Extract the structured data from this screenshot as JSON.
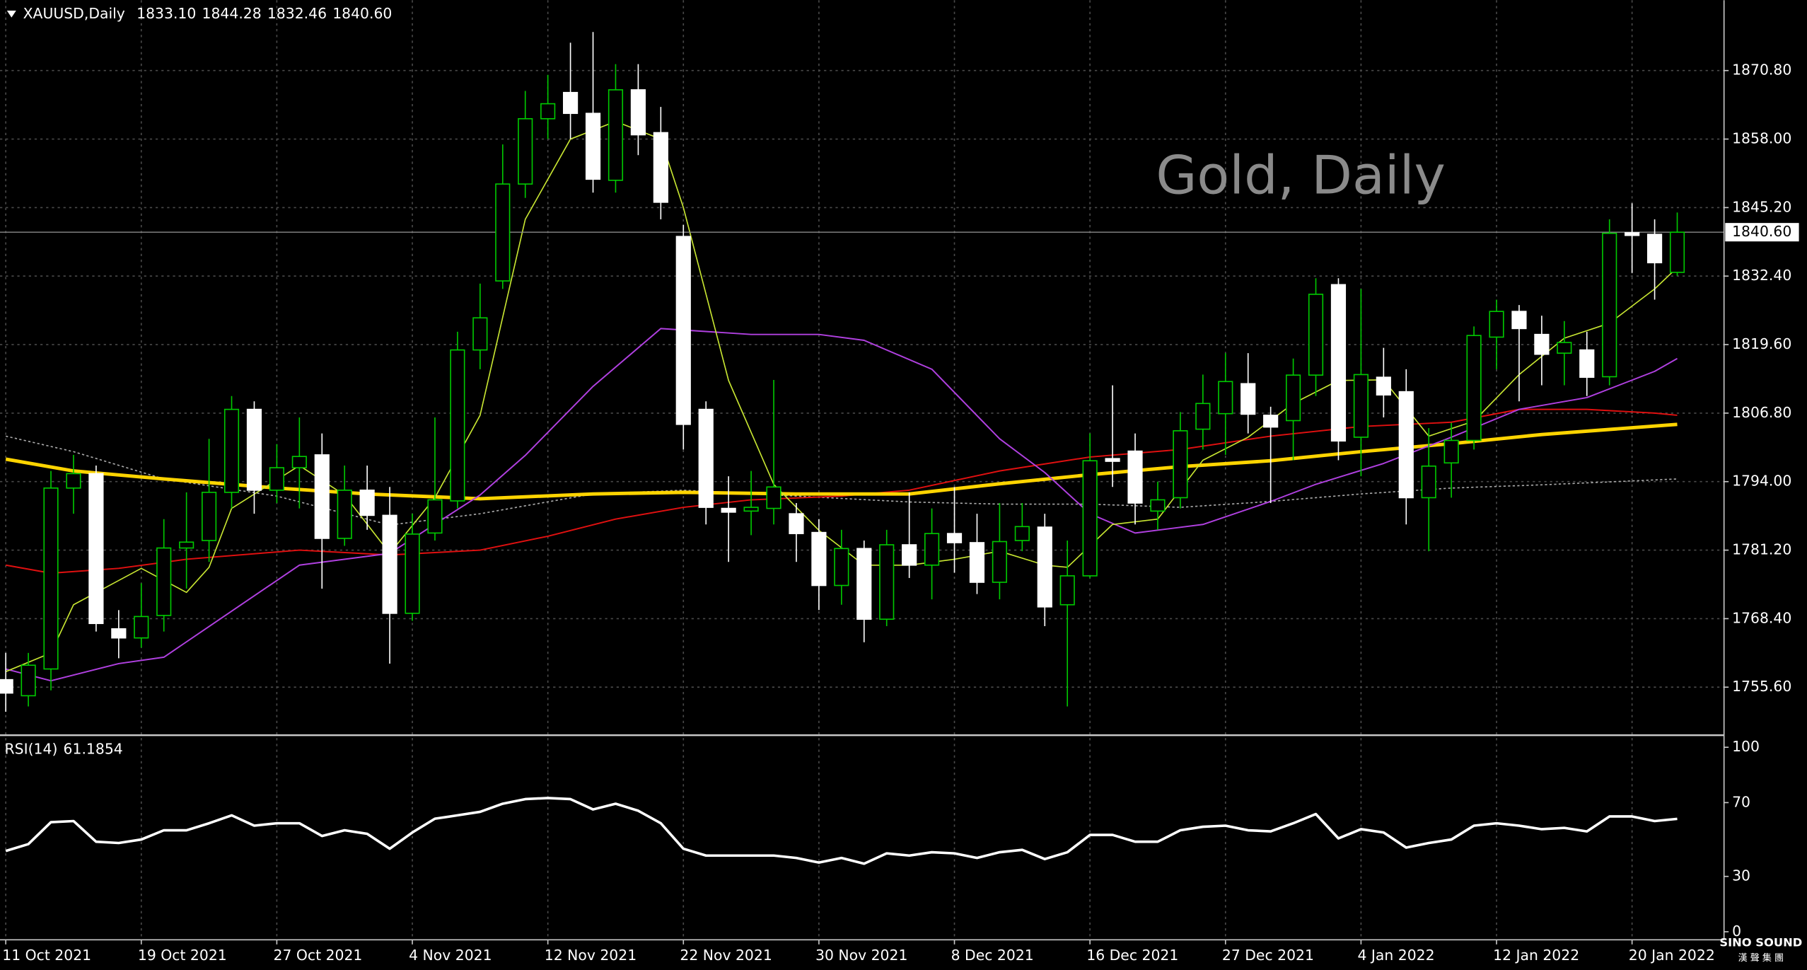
{
  "chart_data": {
    "type": "candlestick",
    "symbol": "XAUUSD,Daily",
    "ohlc_value_labels": [
      "1833.10",
      "1844.28",
      "1832.46",
      "1840.60"
    ],
    "watermark": "Gold, Daily",
    "logo": "SINO SOUND",
    "logo_sub": "漢 聲 集 團",
    "up_color": "#00c800",
    "down_color": "#ffffff",
    "grid": true,
    "categories": [
      "11 Oct 2021",
      null,
      null,
      null,
      null,
      null,
      "19 Oct 2021",
      null,
      null,
      null,
      null,
      null,
      "27 Oct 2021",
      null,
      null,
      null,
      null,
      null,
      "4 Nov 2021",
      null,
      null,
      null,
      null,
      null,
      "12 Nov 2021",
      null,
      null,
      null,
      null,
      null,
      "22 Nov 2021",
      null,
      null,
      null,
      null,
      null,
      "30 Nov 2021",
      null,
      null,
      null,
      null,
      null,
      "8 Dec 2021",
      null,
      null,
      null,
      null,
      null,
      "16 Dec 2021",
      null,
      null,
      null,
      null,
      null,
      "27 Dec 2021",
      null,
      null,
      null,
      null,
      null,
      "4 Jan 2022",
      null,
      null,
      null,
      null,
      null,
      "12 Jan 2022",
      null,
      null,
      null,
      null,
      null,
      "20 Jan 2022",
      null,
      null
    ],
    "open": [
      1757,
      1754,
      1759,
      1792.8,
      1795.5,
      1766.5,
      1764.8,
      1769,
      1781.6,
      1783,
      1792,
      1807.5,
      1792.4,
      1796.6,
      1799,
      1783.4,
      1792.4,
      1787.7,
      1769.4,
      1784.4,
      1790.4,
      1818.6,
      1831.5,
      1849.6,
      1861.8,
      1866.7,
      1862.8,
      1850.3,
      1867.2,
      1859.2,
      1839.8,
      1807.5,
      1789,
      1788.5,
      1789,
      1788,
      1784.5,
      1774.6,
      1781.5,
      1768.3,
      1782.2,
      1778.4,
      1784.3,
      1782.6,
      1775.2,
      1783,
      1785.5,
      1771,
      1776.4,
      1798.3,
      1799.7,
      1788.5,
      1791,
      1803.8,
      1806.7,
      1812.3,
      1806.4,
      1805.4,
      1813.9,
      1830.8,
      1802.3,
      1813.5,
      1810.8,
      1791,
      1797.5,
      1801.7,
      1821,
      1825.8,
      1821.5,
      1818,
      1818.6,
      1813.6,
      1840.5,
      1840.2,
      1833.1
    ],
    "high": [
      1762,
      1762,
      1796,
      1799,
      1797,
      1770,
      1775,
      1787,
      1792,
      1802,
      1810,
      1809,
      1801,
      1806,
      1803,
      1797,
      1797,
      1793,
      1788,
      1806,
      1822,
      1831,
      1857,
      1867,
      1870,
      1876,
      1878,
      1872,
      1872,
      1864,
      1842,
      1809,
      1795,
      1796,
      1813,
      1790,
      1787,
      1785,
      1783,
      1785,
      1792,
      1789,
      1793,
      1788,
      1790,
      1790,
      1788,
      1783,
      1803,
      1812,
      1803,
      1794,
      1807,
      1814,
      1818,
      1818,
      1808,
      1817,
      1832,
      1832,
      1830,
      1819,
      1815,
      1804,
      1805,
      1823,
      1828,
      1827,
      1825,
      1824,
      1822,
      1843,
      1846,
      1843,
      1844.28
    ],
    "low": [
      1751,
      1752,
      1755,
      1788,
      1766,
      1761,
      1763,
      1766,
      1774,
      1779,
      1789,
      1788,
      1790,
      1789,
      1774,
      1782,
      1785,
      1760,
      1768,
      1783,
      1789,
      1815,
      1830,
      1847,
      1858,
      1858,
      1848,
      1848,
      1855,
      1843,
      1800,
      1786,
      1779,
      1784,
      1786,
      1779,
      1770,
      1771,
      1764,
      1767,
      1776,
      1772,
      1777,
      1773,
      1772,
      1781,
      1767,
      1752,
      1776,
      1793,
      1786,
      1785,
      1789,
      1800,
      1799,
      1803,
      1790,
      1798,
      1810,
      1798,
      1795,
      1806,
      1786,
      1781,
      1791,
      1800,
      1815,
      1809,
      1812,
      1812,
      1810,
      1812,
      1833,
      1828,
      1832.46
    ],
    "close": [
      1754.5,
      1759.7,
      1792.8,
      1795.5,
      1767.5,
      1764.8,
      1768.8,
      1781.6,
      1782.7,
      1792,
      1807.5,
      1792.4,
      1796.6,
      1798.7,
      1783.4,
      1792.4,
      1787.7,
      1769.4,
      1784.2,
      1790.6,
      1818.6,
      1824.6,
      1849.6,
      1861.8,
      1864.6,
      1862.8,
      1850.5,
      1867.2,
      1858.8,
      1846.2,
      1804.7,
      1789.2,
      1788.3,
      1789.2,
      1793,
      1784.3,
      1774.6,
      1781.5,
      1768.3,
      1782.2,
      1778.4,
      1784.3,
      1782.6,
      1775.2,
      1782.8,
      1785.6,
      1770.6,
      1776.4,
      1797.9,
      1797.8,
      1790,
      1790.6,
      1803.5,
      1808.6,
      1812.7,
      1806.6,
      1804.2,
      1813.9,
      1829,
      1801.6,
      1814,
      1810.2,
      1791,
      1796.9,
      1801.7,
      1821.3,
      1825.8,
      1822.6,
      1817.8,
      1820,
      1813.5,
      1840.4,
      1840,
      1834.9,
      1840.6
    ],
    "series": [
      {
        "color": "#aaaaaa",
        "width": 1,
        "dashed": true,
        "x": [
          0,
          3,
          7,
          12,
          17,
          21,
          26,
          30,
          35,
          40,
          44,
          48,
          52,
          56,
          60,
          64,
          68,
          74
        ],
        "values": [
          1802.5,
          1799.6,
          1794.5,
          1791.3,
          1785.9,
          1788,
          1791.7,
          1792.4,
          1791.3,
          1790.2,
          1789.8,
          1789.8,
          1789.2,
          1790.3,
          1791.7,
          1792.8,
          1793.4,
          1794.5
        ]
      },
      {
        "color": "#e01010",
        "width": 1.2,
        "dashed": false,
        "x": [
          0,
          2,
          5,
          8,
          13,
          17,
          21,
          24,
          27,
          30,
          33,
          37,
          40,
          44,
          48,
          52,
          56,
          60,
          64,
          67,
          70,
          73,
          74
        ],
        "values": [
          1778.4,
          1776.9,
          1777.8,
          1779.5,
          1781.2,
          1780.3,
          1781.2,
          1783.8,
          1787,
          1789.2,
          1790.6,
          1791.3,
          1792.4,
          1796,
          1798.6,
          1800,
          1802.5,
          1804.3,
          1805.1,
          1807.5,
          1807.5,
          1806.8,
          1806.4
        ]
      },
      {
        "color": "#ffd400",
        "width": 3,
        "dashed": false,
        "x": [
          0,
          3,
          7,
          12,
          16,
          21,
          26,
          30,
          35,
          40,
          44,
          48,
          52,
          56,
          60,
          64,
          68,
          74
        ],
        "values": [
          1798.2,
          1796,
          1794.5,
          1792.8,
          1791.7,
          1790.8,
          1791.7,
          1792,
          1791.7,
          1791.7,
          1793.6,
          1795.3,
          1796.8,
          1797.9,
          1799.6,
          1801.1,
          1802.8,
          1804.7
        ]
      },
      {
        "color": "#b040e0",
        "width": 1.2,
        "dashed": false,
        "x": [
          0,
          2,
          5,
          7,
          10,
          13,
          17,
          21,
          23,
          26,
          29,
          33,
          36,
          38,
          41,
          44,
          46,
          48,
          50,
          53,
          56,
          58,
          61,
          64,
          67,
          70,
          73,
          74
        ],
        "values": [
          1759,
          1756.8,
          1760,
          1761.2,
          1769.8,
          1778.4,
          1780.6,
          1791.5,
          1798.9,
          1811.8,
          1822.6,
          1821.5,
          1821.5,
          1820.4,
          1815,
          1802,
          1795.7,
          1788,
          1784.4,
          1786,
          1790.3,
          1793.5,
          1797.4,
          1802.3,
          1807.5,
          1809.7,
          1814.6,
          1817
        ]
      },
      {
        "color": "#c8e632",
        "width": 1,
        "dashed": false,
        "x": [
          0,
          2,
          3,
          6,
          8,
          9,
          10,
          13,
          15,
          17,
          19,
          21,
          23,
          25,
          27,
          29,
          30,
          32,
          34,
          36,
          38,
          40,
          42,
          44,
          46,
          47,
          49,
          51,
          53,
          55,
          57,
          59,
          61,
          63,
          65,
          67,
          69,
          71,
          73,
          74
        ],
        "values": [
          1758.5,
          1762,
          1771,
          1777.8,
          1773.3,
          1778,
          1789,
          1797,
          1791.5,
          1780.6,
          1791,
          1806.4,
          1843,
          1858,
          1861.3,
          1858,
          1845.2,
          1812.9,
          1793.5,
          1784.9,
          1778.4,
          1778.4,
          1779.5,
          1781,
          1778.4,
          1778,
          1786,
          1787,
          1798,
          1802.3,
          1808.6,
          1812.9,
          1813,
          1802.5,
          1805.3,
          1814,
          1820.8,
          1823.6,
          1830,
          1834
        ]
      }
    ],
    "ylim": [
      1746.74,
      1883.94
    ],
    "yticks": [
      {
        "value": 1870.8,
        "label": "1870.80"
      },
      {
        "value": 1858,
        "label": "1858.00"
      },
      {
        "value": 1845.2,
        "label": "1845.20"
      },
      {
        "value": 1832.4,
        "label": "1832.40"
      },
      {
        "value": 1819.6,
        "label": "1819.60"
      },
      {
        "value": 1806.8,
        "label": "1806.80"
      },
      {
        "value": 1794,
        "label": "1794.00"
      },
      {
        "value": 1781.2,
        "label": "1781.20"
      },
      {
        "value": 1768.4,
        "label": "1768.40"
      },
      {
        "value": 1755.6,
        "label": "1755.60"
      }
    ],
    "current_price": {
      "value": 1840.6,
      "label": "1840.60"
    },
    "rsi": {
      "label": "RSI(14)",
      "color": "#ffffff",
      "ylim": [
        0,
        100
      ],
      "yticks": [
        100,
        70,
        30,
        0
      ],
      "values": [
        43.8,
        47.5,
        59.4,
        60,
        48.8,
        48.1,
        50,
        55,
        55,
        58.8,
        63.1,
        57.5,
        58.8,
        58.8,
        51.9,
        55,
        53.1,
        45,
        53.8,
        61.3,
        63.1,
        65,
        69.4,
        71.9,
        72.5,
        71.9,
        66.3,
        69.4,
        65.6,
        58.8,
        45,
        41.3,
        41.3,
        41.3,
        41.3,
        40,
        37.5,
        40,
        36.9,
        42.5,
        41.3,
        43.1,
        42.5,
        40,
        43.1,
        44.4,
        39.4,
        43.1,
        52.5,
        52.5,
        48.8,
        48.8,
        55,
        56.9,
        57.5,
        55,
        54.4,
        58.8,
        63.8,
        50.6,
        55.6,
        53.8,
        45.6,
        48.1,
        50,
        57.5,
        58.8,
        57.5,
        55.6,
        56.3,
        54.4,
        62.5,
        62.5,
        60,
        61.1854
      ]
    }
  }
}
